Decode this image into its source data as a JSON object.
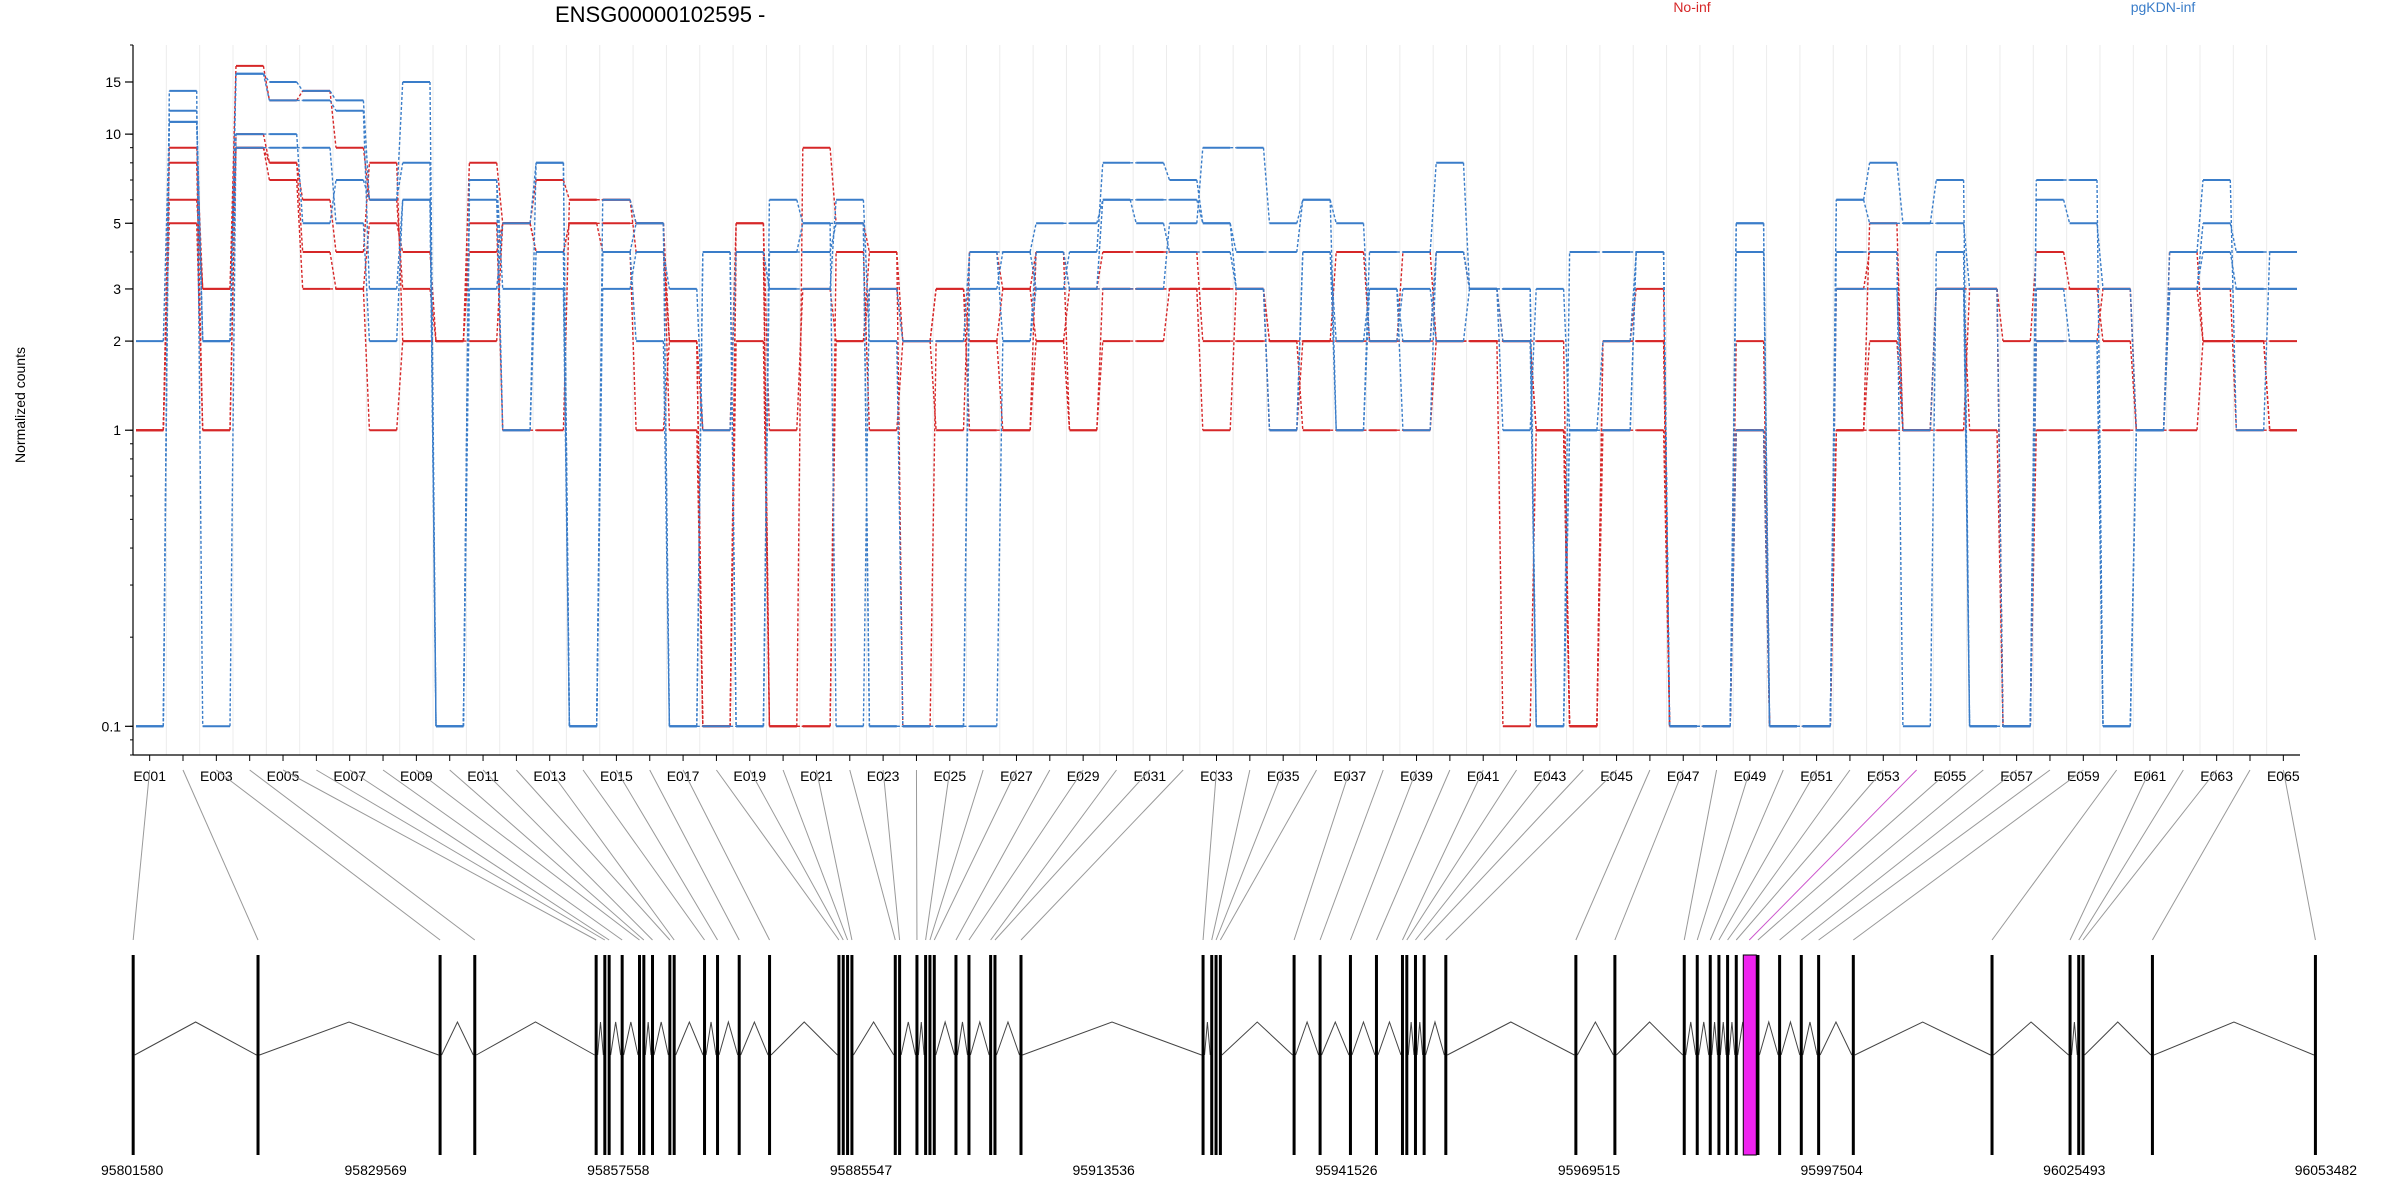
{
  "chart_data": {
    "type": "line",
    "title": "ENSG00000102595 -",
    "ylabel": "Normalized counts",
    "y_scale": "log",
    "ylim": [
      0.08,
      20
    ],
    "y_ticks": [
      0.1,
      1,
      2,
      3,
      5,
      10,
      15
    ],
    "legend_placement": "top",
    "legend": [
      {
        "name": "No-inf",
        "color": "#d62728"
      },
      {
        "name": "pgKDN-inf",
        "color": "#3a7dc9"
      }
    ],
    "x_tick_labels": [
      "E001",
      "E003",
      "E005",
      "E007",
      "E009",
      "E011",
      "E013",
      "E015",
      "E017",
      "E019",
      "E021",
      "E023",
      "E025",
      "E027",
      "E029",
      "E031",
      "E033",
      "E035",
      "E037",
      "E039",
      "E041",
      "E043",
      "E045",
      "E047",
      "E049",
      "E051",
      "E053",
      "E055",
      "E057",
      "E059",
      "E061",
      "E063",
      "E065"
    ],
    "exon_count": 65,
    "series": [
      {
        "group": "No-inf",
        "color": "#d62728",
        "values": [
          1,
          5,
          1,
          9,
          8,
          4,
          3,
          5,
          4,
          2,
          4,
          5,
          4,
          5,
          4,
          1,
          2,
          1,
          5,
          1,
          3,
          2,
          4,
          2,
          3,
          1,
          1,
          2,
          3,
          3,
          3,
          3,
          3,
          3,
          2,
          1,
          1,
          1,
          1,
          2,
          2,
          2,
          1,
          0.1,
          1,
          1,
          0.1,
          0.1,
          1,
          0.1,
          0.1,
          1,
          1,
          1,
          1,
          3,
          0.1,
          1,
          1,
          1,
          1,
          1,
          2,
          2,
          1
        ]
      },
      {
        "group": "No-inf",
        "color": "#d62728",
        "values": [
          1,
          6,
          3,
          9,
          7,
          3,
          3,
          1,
          2,
          2,
          2,
          5,
          4,
          5,
          5,
          5,
          2,
          0.1,
          4,
          0.1,
          0.1,
          2,
          3,
          2,
          3,
          2,
          1,
          4,
          3,
          4,
          4,
          4,
          2,
          2,
          2,
          2,
          2,
          2,
          2,
          2,
          2,
          2,
          2,
          0.1,
          2,
          2,
          0.1,
          0.1,
          1,
          0.1,
          0.1,
          1,
          2,
          1,
          3,
          3,
          2,
          4,
          3,
          2,
          1,
          3,
          2,
          2,
          1
        ]
      },
      {
        "group": "No-inf",
        "color": "#d62728",
        "values": [
          1,
          8,
          1,
          10,
          8,
          6,
          4,
          8,
          2,
          2,
          5,
          1,
          1,
          6,
          6,
          4,
          2,
          0.1,
          2,
          0.1,
          0.1,
          4,
          1,
          2,
          1,
          4,
          3,
          4,
          1,
          2,
          2,
          3,
          3,
          3,
          1,
          2,
          4,
          2,
          4,
          2,
          2,
          0.1,
          1,
          0.1,
          2,
          2,
          0.1,
          0.1,
          2,
          0.1,
          0.1,
          3,
          4,
          1,
          3,
          3,
          0.1,
          3,
          3,
          3,
          1,
          4,
          2,
          2,
          2
        ]
      },
      {
        "group": "No-inf",
        "color": "#d62728",
        "values": [
          1,
          9,
          3,
          17,
          13,
          14,
          9,
          6,
          3,
          2,
          8,
          5,
          7,
          6,
          6,
          5,
          1,
          0.1,
          5,
          0.1,
          9,
          5,
          4,
          0.1,
          2,
          2,
          3,
          2,
          1,
          3,
          3,
          3,
          1,
          3,
          2,
          2,
          2,
          2,
          2,
          4,
          3,
          2,
          1,
          0.1,
          2,
          3,
          0.1,
          0.1,
          1,
          0.1,
          0.1,
          1,
          5,
          1,
          3,
          1,
          0.1,
          2,
          2,
          3,
          1,
          3,
          3,
          1,
          1
        ]
      },
      {
        "group": "pgKDN-inf",
        "color": "#3a7dc9",
        "values": [
          0.1,
          11,
          2,
          16,
          13,
          13,
          12,
          3,
          6,
          0.1,
          7,
          1,
          4,
          0.1,
          4,
          5,
          0.1,
          4,
          0.1,
          4,
          5,
          5,
          0.1,
          0.1,
          0.1,
          4,
          2,
          4,
          3,
          6,
          5,
          4,
          4,
          3,
          1,
          4,
          1,
          3,
          2,
          4,
          3,
          2,
          0.1,
          1,
          1,
          4,
          0.1,
          0.1,
          1,
          0.1,
          0.1,
          3,
          3,
          1,
          3,
          0.1,
          0.1,
          2,
          2,
          0.1,
          1,
          3,
          5,
          4,
          4
        ]
      },
      {
        "group": "pgKDN-inf",
        "color": "#3a7dc9",
        "values": [
          0.1,
          12,
          2,
          16,
          15,
          14,
          13,
          6,
          8,
          0.1,
          6,
          1,
          8,
          0.1,
          6,
          5,
          0.1,
          4,
          0.1,
          4,
          4,
          5,
          0.1,
          0.1,
          0.1,
          3,
          4,
          3,
          4,
          8,
          8,
          7,
          5,
          3,
          1,
          4,
          2,
          3,
          1,
          4,
          3,
          3,
          0.1,
          1,
          1,
          4,
          0.1,
          0.1,
          5,
          0.1,
          0.1,
          4,
          4,
          0.1,
          4,
          0.1,
          0.1,
          3,
          2,
          0.1,
          1,
          3,
          4,
          3,
          3
        ]
      },
      {
        "group": "pgKDN-inf",
        "color": "#3a7dc9",
        "values": [
          2,
          11,
          2,
          9,
          9,
          9,
          5,
          2,
          6,
          0.1,
          7,
          3,
          3,
          0.1,
          4,
          2,
          0.1,
          0.1,
          0.1,
          6,
          5,
          0.1,
          3,
          2,
          2,
          4,
          4,
          5,
          5,
          6,
          6,
          6,
          5,
          4,
          4,
          6,
          1,
          4,
          4,
          8,
          3,
          3,
          0.1,
          4,
          4,
          4,
          0.1,
          0.1,
          5,
          0.1,
          0.1,
          6,
          8,
          5,
          7,
          0.1,
          0.1,
          7,
          7,
          0.1,
          1,
          4,
          7,
          1,
          4
        ]
      },
      {
        "group": "pgKDN-inf",
        "color": "#3a7dc9",
        "values": [
          0.1,
          14,
          0.1,
          10,
          10,
          5,
          7,
          6,
          15,
          0.1,
          3,
          5,
          8,
          0.1,
          3,
          4,
          3,
          1,
          4,
          3,
          3,
          6,
          2,
          0.1,
          0.1,
          0.1,
          2,
          3,
          3,
          3,
          3,
          5,
          9,
          9,
          5,
          6,
          5,
          2,
          3,
          2,
          3,
          1,
          3,
          1,
          2,
          4,
          0.1,
          0.1,
          4,
          0.1,
          0.1,
          6,
          5,
          5,
          5,
          3,
          0.1,
          6,
          5,
          3,
          1,
          3,
          3,
          3,
          3
        ]
      }
    ],
    "genomic_axis_labels": [
      "95801580",
      "95829569",
      "95857558",
      "95885547",
      "95913536",
      "95941526",
      "95969515",
      "95997504",
      "96025493",
      "96053482"
    ],
    "genomic_range": [
      95801580,
      96053482
    ],
    "exon_positions": [
      95801600,
      95816000,
      95837000,
      95841000,
      95855000,
      95856000,
      95856500,
      95858000,
      95860000,
      95860500,
      95861500,
      95863500,
      95864000,
      95867500,
      95869000,
      95871500,
      95875000,
      95883000,
      95883500,
      95884000,
      95884500,
      95889500,
      95890000,
      95892000,
      95893000,
      95893500,
      95894000,
      95896500,
      95898000,
      95900500,
      95901000,
      95904000,
      95925000,
      95926000,
      95926500,
      95927000,
      95935500,
      95938500,
      95942000,
      95945000,
      95948000,
      95948500,
      95949500,
      95950500,
      95953000,
      95968000,
      95972500,
      95980500,
      95982000,
      95983500,
      95984500,
      95985500,
      95986500,
      95988000,
      95989000,
      95991500,
      95994000,
      95996000,
      96000000,
      96016000,
      96025000,
      96026000,
      96026500,
      96034500,
      96053300
    ],
    "highlighted_exon": "E054",
    "highlight_color": "#ee22ee"
  }
}
